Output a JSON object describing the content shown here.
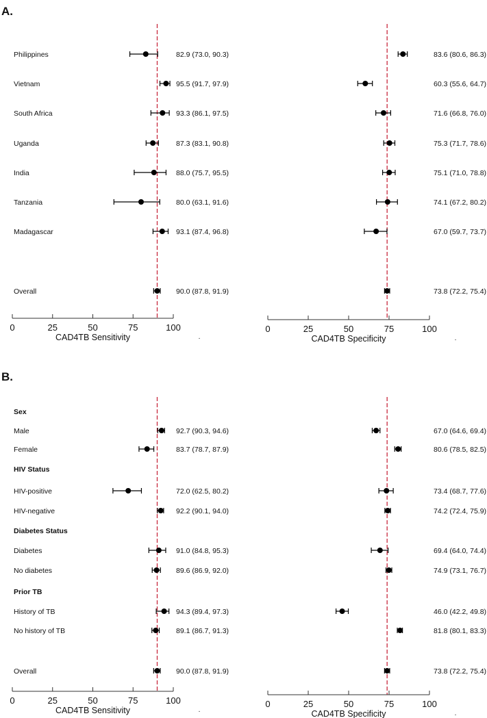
{
  "chart_data": [
    {
      "panel": "A.",
      "type": "forest",
      "reference_lines": {
        "sensitivity": 90.0,
        "specificity": 73.8
      },
      "xlim": [
        0,
        100
      ],
      "ticks": [
        "0",
        "25",
        "50",
        "75",
        "100"
      ],
      "xlabel_left": "CAD4TB Sensitivity",
      "xlabel_right": "CAD4TB Specificity",
      "rows": [
        {
          "label": "Philippines",
          "sens": [
            82.9,
            73.0,
            90.3
          ],
          "sens_text": "82.9 (73.0, 90.3)",
          "spec": [
            83.6,
            80.6,
            86.3
          ],
          "spec_text": "83.6 (80.6, 86.3)"
        },
        {
          "label": "Vietnam",
          "sens": [
            95.5,
            91.7,
            97.9
          ],
          "sens_text": "95.5 (91.7, 97.9)",
          "spec": [
            60.3,
            55.6,
            64.7
          ],
          "spec_text": "60.3 (55.6, 64.7)"
        },
        {
          "label": "South Africa",
          "sens": [
            93.3,
            86.1,
            97.5
          ],
          "sens_text": "93.3 (86.1, 97.5)",
          "spec": [
            71.6,
            66.8,
            76.0
          ],
          "spec_text": "71.6 (66.8, 76.0)"
        },
        {
          "label": "Uganda",
          "sens": [
            87.3,
            83.1,
            90.8
          ],
          "sens_text": "87.3 (83.1, 90.8)",
          "spec": [
            75.3,
            71.7,
            78.6
          ],
          "spec_text": "75.3 (71.7, 78.6)"
        },
        {
          "label": "India",
          "sens": [
            88.0,
            75.7,
            95.5
          ],
          "sens_text": "88.0 (75.7, 95.5)",
          "spec": [
            75.1,
            71.0,
            78.8
          ],
          "spec_text": "75.1 (71.0, 78.8)"
        },
        {
          "label": "Tanzania",
          "sens": [
            80.0,
            63.1,
            91.6
          ],
          "sens_text": "80.0 (63.1, 91.6)",
          "spec": [
            74.1,
            67.2,
            80.2
          ],
          "spec_text": "74.1 (67.2, 80.2)"
        },
        {
          "label": "Madagascar",
          "sens": [
            93.1,
            87.4,
            96.8
          ],
          "sens_text": "93.1 (87.4, 96.8)",
          "spec": [
            67.0,
            59.7,
            73.7
          ],
          "spec_text": "67.0 (59.7, 73.7)"
        },
        {
          "label": "Overall",
          "sens": [
            90.0,
            87.8,
            91.9
          ],
          "sens_text": "90.0 (87.8, 91.9)",
          "spec": [
            73.8,
            72.2,
            75.4
          ],
          "spec_text": "73.8 (72.2, 75.4)"
        }
      ]
    },
    {
      "panel": "B.",
      "type": "forest",
      "reference_lines": {
        "sensitivity": 90.0,
        "specificity": 73.8
      },
      "xlim": [
        0,
        100
      ],
      "ticks": [
        "0",
        "25",
        "50",
        "75",
        "100"
      ],
      "xlabel_left": "CAD4TB Sensitivity",
      "xlabel_right": "CAD4TB Specificity",
      "rows": [
        {
          "header": "Sex"
        },
        {
          "label": "Male",
          "sens": [
            92.7,
            90.3,
            94.6
          ],
          "sens_text": "92.7 (90.3, 94.6)",
          "spec": [
            67.0,
            64.6,
            69.4
          ],
          "spec_text": "67.0 (64.6, 69.4)"
        },
        {
          "label": "Female",
          "sens": [
            83.7,
            78.7,
            87.9
          ],
          "sens_text": "83.7 (78.7, 87.9)",
          "spec": [
            80.6,
            78.5,
            82.5
          ],
          "spec_text": "80.6 (78.5, 82.5)"
        },
        {
          "header": "HIV Status"
        },
        {
          "label": "HIV-positive",
          "sens": [
            72.0,
            62.5,
            80.2
          ],
          "sens_text": "72.0 (62.5, 80.2)",
          "spec": [
            73.4,
            68.7,
            77.6
          ],
          "spec_text": "73.4 (68.7, 77.6)"
        },
        {
          "label": "HIV-negative",
          "sens": [
            92.2,
            90.1,
            94.0
          ],
          "sens_text": "92.2 (90.1, 94.0)",
          "spec": [
            74.2,
            72.4,
            75.9
          ],
          "spec_text": "74.2 (72.4, 75.9)"
        },
        {
          "header": "Diabetes Status"
        },
        {
          "label": "Diabetes",
          "sens": [
            91.0,
            84.8,
            95.3
          ],
          "sens_text": "91.0 (84.8, 95.3)",
          "spec": [
            69.4,
            64.0,
            74.4
          ],
          "spec_text": "69.4 (64.0, 74.4)"
        },
        {
          "label": "No diabetes",
          "sens": [
            89.6,
            86.9,
            92.0
          ],
          "sens_text": "89.6 (86.9, 92.0)",
          "spec": [
            74.9,
            73.1,
            76.7
          ],
          "spec_text": "74.9 (73.1, 76.7)"
        },
        {
          "header": "Prior TB"
        },
        {
          "label": "History of TB",
          "sens": [
            94.3,
            89.4,
            97.3
          ],
          "sens_text": "94.3 (89.4, 97.3)",
          "spec": [
            46.0,
            42.2,
            49.8
          ],
          "spec_text": "46.0 (42.2, 49.8)"
        },
        {
          "label": "No history of TB",
          "sens": [
            89.1,
            86.7,
            91.3
          ],
          "sens_text": "89.1 (86.7, 91.3)",
          "spec": [
            81.8,
            80.1,
            83.3
          ],
          "spec_text": "81.8 (80.1, 83.3)"
        },
        {
          "label": "Overall",
          "sens": [
            90.0,
            87.8,
            91.9
          ],
          "sens_text": "90.0 (87.8, 91.9)",
          "spec": [
            73.8,
            72.2,
            75.4
          ],
          "spec_text": "73.8 (72.2, 75.4)"
        }
      ]
    }
  ],
  "colors": {
    "reference_line": "#c8283c",
    "marker": "#000000"
  }
}
